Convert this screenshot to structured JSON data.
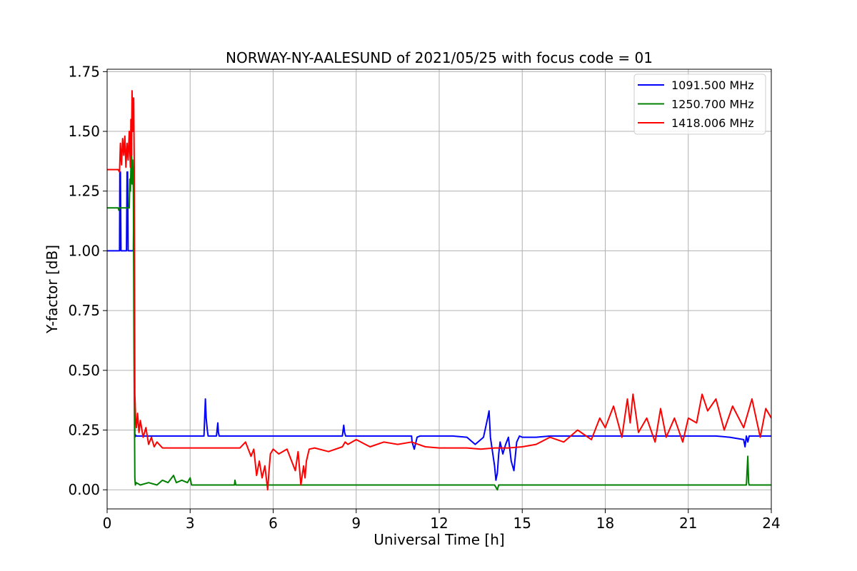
{
  "chart_data": {
    "type": "line",
    "title": "NORWAY-NY-AALESUND of 2021/05/25 with focus code = 01",
    "xlabel": "Universal Time [h]",
    "ylabel": "Y-factor [dB]",
    "xlim": [
      0,
      24
    ],
    "ylim": [
      -0.08,
      1.76
    ],
    "xticks": [
      0,
      3,
      6,
      9,
      12,
      15,
      18,
      21,
      24
    ],
    "yticks": [
      0.0,
      0.25,
      0.5,
      0.75,
      1.0,
      1.25,
      1.5,
      1.75
    ],
    "xtick_labels": [
      "0",
      "3",
      "6",
      "9",
      "12",
      "15",
      "18",
      "21",
      "24"
    ],
    "ytick_labels": [
      "0.00",
      "0.25",
      "0.50",
      "0.75",
      "1.00",
      "1.25",
      "1.50",
      "1.75"
    ],
    "grid": true,
    "legend_position": "top-right",
    "series": [
      {
        "name": "1091.500 MHz",
        "color": "#0000ff",
        "x": [
          0.0,
          0.45,
          0.46,
          0.48,
          0.5,
          0.7,
          0.72,
          0.74,
          0.76,
          0.95,
          0.96,
          0.98,
          1.0,
          1.02,
          1.05,
          1.1,
          1.5,
          2.0,
          3.0,
          3.5,
          3.55,
          3.58,
          3.62,
          3.65,
          3.7,
          3.8,
          3.95,
          4.0,
          4.02,
          4.05,
          4.1,
          5.0,
          6.0,
          7.0,
          8.0,
          8.5,
          8.55,
          8.58,
          8.62,
          8.7,
          9.0,
          10.0,
          11.0,
          11.02,
          11.1,
          11.2,
          11.3,
          12.0,
          12.5,
          13.0,
          13.3,
          13.6,
          13.75,
          13.8,
          13.85,
          13.9,
          14.0,
          14.05,
          14.1,
          14.15,
          14.2,
          14.3,
          14.4,
          14.5,
          14.6,
          14.7,
          14.8,
          14.9,
          15.0,
          15.5,
          16.0,
          17.0,
          18.0,
          19.0,
          20.0,
          21.0,
          22.0,
          22.5,
          23.0,
          23.05,
          23.1,
          23.15,
          23.2,
          24.0
        ],
        "y": [
          1.0,
          1.0,
          1.33,
          1.33,
          1.0,
          1.0,
          1.33,
          1.33,
          1.0,
          1.0,
          1.2,
          0.7,
          0.22,
          0.23,
          0.225,
          0.225,
          0.225,
          0.225,
          0.225,
          0.225,
          0.38,
          0.3,
          0.25,
          0.225,
          0.225,
          0.225,
          0.225,
          0.28,
          0.24,
          0.225,
          0.225,
          0.225,
          0.225,
          0.225,
          0.225,
          0.225,
          0.27,
          0.24,
          0.225,
          0.225,
          0.225,
          0.225,
          0.225,
          0.2,
          0.17,
          0.22,
          0.225,
          0.225,
          0.225,
          0.22,
          0.19,
          0.22,
          0.3,
          0.33,
          0.22,
          0.18,
          0.1,
          0.04,
          0.07,
          0.15,
          0.2,
          0.15,
          0.19,
          0.22,
          0.12,
          0.08,
          0.2,
          0.225,
          0.22,
          0.22,
          0.225,
          0.225,
          0.225,
          0.225,
          0.225,
          0.225,
          0.225,
          0.22,
          0.21,
          0.18,
          0.225,
          0.2,
          0.225,
          0.225
        ]
      },
      {
        "name": "1250.700 MHz",
        "color": "#008000",
        "x": [
          0.0,
          0.4,
          0.42,
          0.44,
          0.8,
          0.82,
          0.84,
          0.88,
          0.9,
          0.92,
          0.95,
          0.97,
          1.0,
          1.02,
          1.05,
          1.2,
          1.5,
          1.8,
          2.0,
          2.2,
          2.4,
          2.5,
          2.7,
          2.9,
          3.0,
          3.05,
          3.1,
          4.0,
          4.6,
          4.62,
          4.65,
          5.0,
          6.0,
          7.0,
          7.5,
          8.0,
          8.5,
          9.0,
          12.0,
          14.0,
          14.1,
          14.15,
          14.2,
          16.0,
          18.0,
          20.0,
          22.0,
          23.0,
          23.1,
          23.15,
          23.18,
          23.2,
          24.0
        ],
        "y": [
          1.18,
          1.18,
          1.17,
          1.18,
          1.18,
          1.3,
          1.25,
          1.45,
          1.28,
          1.38,
          1.25,
          0.6,
          0.05,
          0.02,
          0.03,
          0.02,
          0.03,
          0.02,
          0.04,
          0.03,
          0.06,
          0.03,
          0.04,
          0.03,
          0.05,
          0.02,
          0.02,
          0.02,
          0.02,
          0.04,
          0.02,
          0.02,
          0.02,
          0.02,
          0.02,
          0.02,
          0.02,
          0.02,
          0.02,
          0.02,
          0.0,
          0.02,
          0.02,
          0.02,
          0.02,
          0.02,
          0.02,
          0.02,
          0.02,
          0.14,
          0.03,
          0.02,
          0.02
        ]
      },
      {
        "name": "1418.006 MHz",
        "color": "#ff0000",
        "x": [
          0.0,
          0.4,
          0.45,
          0.48,
          0.52,
          0.56,
          0.6,
          0.64,
          0.68,
          0.72,
          0.76,
          0.8,
          0.84,
          0.86,
          0.88,
          0.9,
          0.93,
          0.96,
          0.98,
          1.0,
          1.03,
          1.06,
          1.1,
          1.15,
          1.2,
          1.3,
          1.4,
          1.5,
          1.6,
          1.7,
          1.8,
          2.0,
          2.5,
          3.0,
          3.5,
          4.0,
          4.5,
          4.8,
          5.0,
          5.2,
          5.3,
          5.4,
          5.5,
          5.6,
          5.7,
          5.8,
          5.85,
          5.9,
          6.0,
          6.2,
          6.5,
          6.8,
          6.9,
          7.0,
          7.1,
          7.15,
          7.2,
          7.3,
          7.5,
          8.0,
          8.5,
          8.6,
          8.7,
          9.0,
          9.5,
          10.0,
          10.5,
          11.0,
          11.5,
          12.0,
          12.5,
          13.0,
          13.5,
          14.0,
          14.5,
          15.0,
          15.5,
          16.0,
          16.5,
          17.0,
          17.5,
          17.8,
          18.0,
          18.3,
          18.6,
          18.8,
          18.9,
          19.0,
          19.2,
          19.5,
          19.8,
          20.0,
          20.2,
          20.5,
          20.8,
          21.0,
          21.3,
          21.5,
          21.7,
          22.0,
          22.3,
          22.6,
          23.0,
          23.3,
          23.6,
          23.8,
          24.0
        ],
        "y": [
          1.34,
          1.34,
          1.33,
          1.45,
          1.36,
          1.47,
          1.4,
          1.48,
          1.35,
          1.45,
          1.38,
          1.5,
          1.35,
          1.55,
          1.4,
          1.67,
          1.5,
          1.64,
          1.35,
          0.4,
          0.3,
          0.26,
          0.32,
          0.24,
          0.29,
          0.22,
          0.26,
          0.19,
          0.22,
          0.18,
          0.2,
          0.175,
          0.175,
          0.175,
          0.175,
          0.175,
          0.175,
          0.175,
          0.2,
          0.14,
          0.17,
          0.06,
          0.12,
          0.05,
          0.1,
          0.0,
          0.08,
          0.15,
          0.17,
          0.15,
          0.17,
          0.08,
          0.16,
          0.02,
          0.1,
          0.05,
          0.12,
          0.17,
          0.175,
          0.16,
          0.18,
          0.2,
          0.19,
          0.21,
          0.18,
          0.2,
          0.19,
          0.2,
          0.18,
          0.175,
          0.175,
          0.175,
          0.17,
          0.175,
          0.175,
          0.18,
          0.19,
          0.22,
          0.2,
          0.25,
          0.21,
          0.3,
          0.26,
          0.35,
          0.22,
          0.38,
          0.28,
          0.4,
          0.24,
          0.3,
          0.2,
          0.34,
          0.22,
          0.3,
          0.2,
          0.3,
          0.28,
          0.4,
          0.33,
          0.38,
          0.25,
          0.35,
          0.26,
          0.38,
          0.22,
          0.34,
          0.3
        ]
      }
    ]
  }
}
